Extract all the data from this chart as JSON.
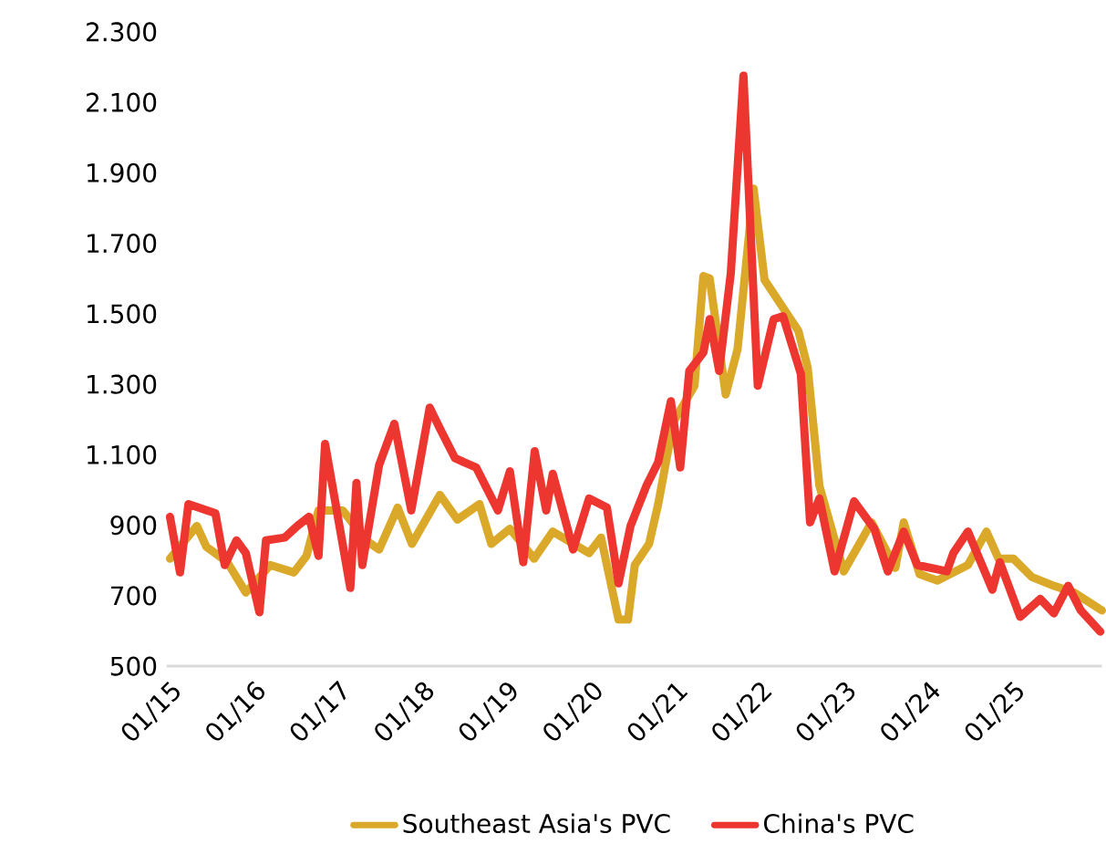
{
  "chart_data": {
    "type": "line",
    "xlim": [
      "2014-12-17",
      "2026-01-19"
    ],
    "ylim": [
      500,
      2300
    ],
    "xticks": [
      {
        "value": "2015-01",
        "label": "01/15"
      },
      {
        "value": "2016-01",
        "label": "01/16"
      },
      {
        "value": "2017-01",
        "label": "01/17"
      },
      {
        "value": "2018-01",
        "label": "01/18"
      },
      {
        "value": "2019-01",
        "label": "01/19"
      },
      {
        "value": "2020-01",
        "label": "01/20"
      },
      {
        "value": "2021-01",
        "label": "01/21"
      },
      {
        "value": "2022-01",
        "label": "01/22"
      },
      {
        "value": "2023-01",
        "label": "01/23"
      },
      {
        "value": "2024-01",
        "label": "01/24"
      },
      {
        "value": "2025-01",
        "label": "01/25"
      }
    ],
    "yticks": [
      500,
      700,
      900,
      {
        "value": 1100,
        "label": "1.100"
      },
      {
        "value": 1300,
        "label": "1.300"
      },
      {
        "value": 1500,
        "label": "1.500"
      },
      {
        "value": 1700,
        "label": "1.700"
      },
      {
        "value": 1900,
        "label": "1.900"
      },
      {
        "value": 2100,
        "label": "2.100"
      },
      {
        "value": 2300,
        "label": "2.300"
      }
    ],
    "legend": "bottom",
    "marker": "none",
    "line_style": "solid",
    "series": [
      {
        "name": "Southeast Asia's PVC",
        "color": "#dba92a",
        "x": [
          "2015-01-01",
          "2015-04-26",
          "2015-06-06",
          "2015-09-06",
          "2015-11-25",
          "2016-03-09",
          "2016-06-20",
          "2016-08-14",
          "2016-10-05",
          "2017-01-19",
          "2017-04-28",
          "2017-06-24",
          "2017-09-13",
          "2017-11-14",
          "2018-03-13",
          "2018-05-28",
          "2018-09-02",
          "2018-10-23",
          "2019-01-12",
          "2019-04-26",
          "2019-07-15",
          "2019-12-20",
          "2020-02-11",
          "2020-04-26",
          "2020-06-06",
          "2020-07-05",
          "2020-09-06",
          "2020-10-15",
          "2020-12-20",
          "2021-03-20",
          "2021-04-28",
          "2021-05-25",
          "2021-08-03",
          "2021-09-24",
          "2021-12-02",
          "2022-01-19",
          "2022-06-13",
          "2022-07-23",
          "2022-09-13",
          "2022-12-27",
          "2023-04-26",
          "2023-08-07",
          "2023-09-13",
          "2023-11-21",
          "2024-02-07",
          "2024-06-17",
          "2024-09-06",
          "2024-10-28",
          "2025-01-01",
          "2025-03-20",
          "2025-06-24",
          "2025-09-20",
          "2026-01-19"
        ],
        "values": [
          805,
          898,
          839,
          795,
          709,
          787,
          766,
          813,
          942,
          942,
          857,
          831,
          950,
          847,
          986,
          916,
          960,
          847,
          890,
          805,
          882,
          821,
          865,
          632,
          632,
          787,
          847,
          960,
          1193,
          1296,
          1607,
          1600,
          1271,
          1400,
          1855,
          1596,
          1452,
          1348,
          1012,
          769,
          908,
          779,
          908,
          761,
          743,
          787,
          882,
          805,
          805,
          753,
          728,
          709,
          658
        ]
      },
      {
        "name": "China's PVC",
        "color": "#ee3631",
        "x": [
          "2015-01-01",
          "2015-02-14",
          "2015-03-20",
          "2015-07-15",
          "2015-08-25",
          "2015-10-15",
          "2015-11-25",
          "2016-01-23",
          "2016-02-21",
          "2016-05-11",
          "2016-07-05",
          "2016-08-25",
          "2016-10-05",
          "2016-11-03",
          "2017-02-21",
          "2017-03-17",
          "2017-04-12",
          "2017-06-24",
          "2017-08-29",
          "2017-11-11",
          "2018-01-30",
          "2018-03-13",
          "2018-05-18",
          "2018-08-18",
          "2018-11-21",
          "2019-01-12",
          "2019-03-09",
          "2019-04-28",
          "2019-06-17",
          "2019-07-15",
          "2019-10-12",
          "2019-12-20",
          "2020-03-06",
          "2020-04-26",
          "2020-06-17",
          "2020-08-25",
          "2020-10-15",
          "2020-12-09",
          "2021-01-19",
          "2021-02-28",
          "2021-04-28",
          "2021-05-25",
          "2021-07-05",
          "2021-08-25",
          "2021-10-19",
          "2021-12-20",
          "2022-02-28",
          "2022-04-08",
          "2022-06-24",
          "2022-08-03",
          "2022-09-13",
          "2022-11-18",
          "2023-02-11",
          "2023-05-07",
          "2023-07-05",
          "2023-09-13",
          "2023-11-11",
          "2024-03-17",
          "2024-04-15",
          "2024-06-17",
          "2024-10-01",
          "2024-11-03",
          "2025-01-30",
          "2025-04-26",
          "2025-06-24",
          "2025-08-25",
          "2025-10-19",
          "2026-01-12"
        ],
        "values": [
          924,
          766,
          960,
          934,
          787,
          857,
          821,
          653,
          857,
          865,
          898,
          924,
          813,
          1131,
          722,
          1020,
          787,
          1071,
          1188,
          942,
          1234,
          1175,
          1090,
          1064,
          942,
          1053,
          795,
          1110,
          942,
          1046,
          831,
          976,
          950,
          735,
          898,
          1012,
          1079,
          1252,
          1064,
          1338,
          1390,
          1485,
          1338,
          1615,
          2176,
          1296,
          1485,
          1493,
          1330,
          908,
          976,
          769,
          968,
          890,
          769,
          882,
          787,
          769,
          821,
          882,
          717,
          795,
          640,
          691,
          650,
          728,
          658,
          598
        ]
      }
    ]
  }
}
